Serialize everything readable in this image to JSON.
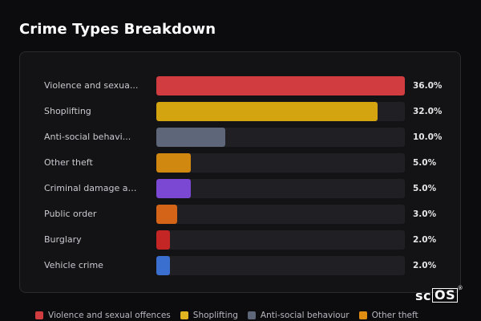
{
  "title": "Crime Types Breakdown",
  "logo": {
    "text": "sc",
    "boxed": "OS",
    "reg": "®"
  },
  "chart_data": {
    "type": "bar",
    "orientation": "horizontal",
    "categories": [
      "Violence and sexua...",
      "Shoplifting",
      "Anti-social behavi...",
      "Other theft",
      "Criminal damage an...",
      "Public order",
      "Burglary",
      "Vehicle crime"
    ],
    "values": [
      36.0,
      32.0,
      10.0,
      5.0,
      5.0,
      3.0,
      2.0,
      2.0
    ],
    "value_labels": [
      "36.0%",
      "32.0%",
      "10.0%",
      "5.0%",
      "5.0%",
      "3.0%",
      "2.0%",
      "2.0%"
    ],
    "colors": [
      "#d03c3f",
      "#d4a410",
      "#5d6779",
      "#d18810",
      "#7b48d4",
      "#d46418",
      "#c42626",
      "#3a6fd0"
    ],
    "xlim": [
      0,
      36
    ],
    "grid": false
  },
  "legend": [
    {
      "label": "Violence and sexual offences",
      "color": "#d03c3f"
    },
    {
      "label": "Shoplifting",
      "color": "#e0b421"
    },
    {
      "label": "Anti-social behaviour",
      "color": "#5d6779"
    },
    {
      "label": "Other theft",
      "color": "#e08e12"
    }
  ]
}
